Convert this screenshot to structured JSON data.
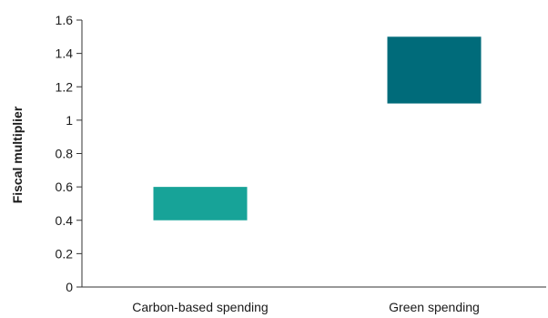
{
  "chart_data": {
    "type": "bar",
    "subtype": "floating-range",
    "title": "",
    "xlabel": "",
    "ylabel": "Fiscal multiplier",
    "ylim": [
      0,
      1.6
    ],
    "yticks": [
      "0",
      "0.2",
      "0.4",
      "0.6",
      "0.8",
      "1",
      "1.2",
      "1.4",
      "1.6"
    ],
    "grid": false,
    "categories": [
      "Carbon-based spending",
      "Green spending"
    ],
    "ranges": [
      {
        "category": "Carbon-based spending",
        "low": 0.4,
        "high": 0.6,
        "color": "#17a398"
      },
      {
        "category": "Green spending",
        "low": 1.1,
        "high": 1.5,
        "color": "#006b7a"
      }
    ]
  }
}
